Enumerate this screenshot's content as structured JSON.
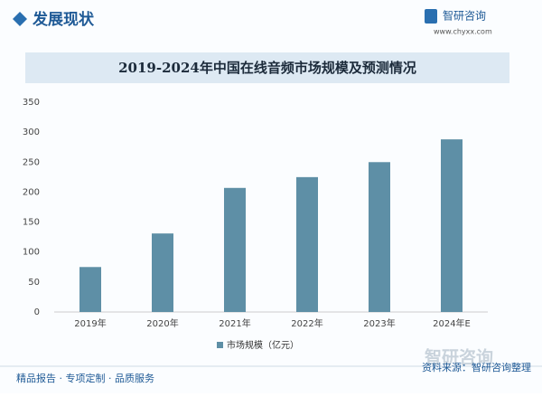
{
  "header": {
    "section": "发展现状",
    "brand": "智研咨询",
    "url": "www.chyxx.com"
  },
  "chart_data": {
    "type": "bar",
    "title": "2019-2024年中国在线音频市场规模及预测情况",
    "categories": [
      "2019年",
      "2020年",
      "2021年",
      "2022年",
      "2023年",
      "2024年E"
    ],
    "series": [
      {
        "name": "市场规模（亿元）",
        "color": "#5e8fa6",
        "values": [
          75,
          131,
          207,
          225,
          250,
          288
        ]
      }
    ],
    "ylim": [
      0,
      350
    ],
    "yticks": [
      0,
      50,
      100,
      150,
      200,
      250,
      300,
      350
    ],
    "grid": false,
    "legend": "bottom"
  },
  "footer": {
    "slogan": "精品报告 · 专项定制 · 品质服务",
    "source": "资料来源：智研咨询整理",
    "logo": "智研咨询"
  }
}
